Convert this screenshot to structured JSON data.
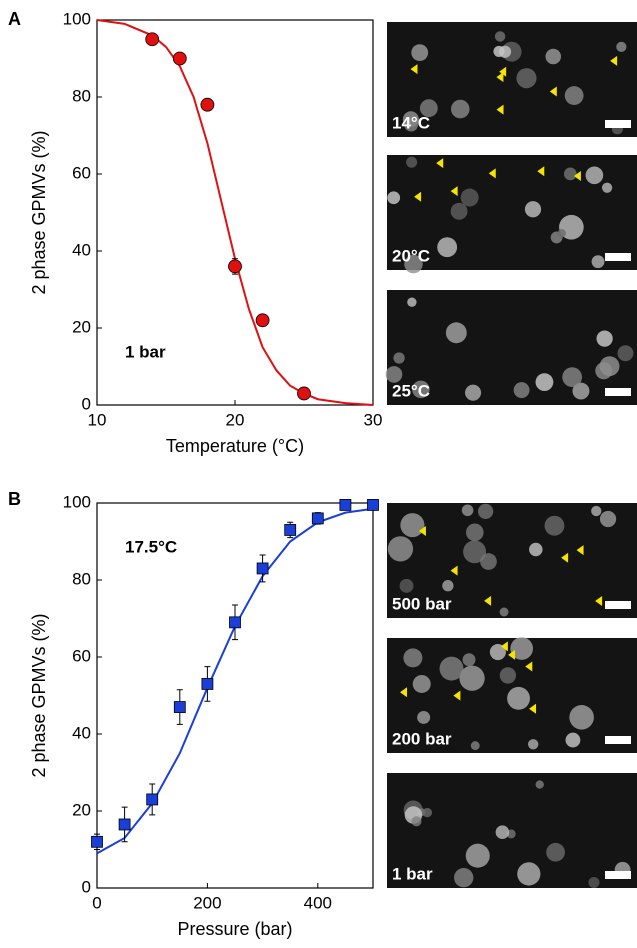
{
  "chart_data": [
    {
      "type": "scatter",
      "panel_label": "A",
      "xlabel": "Temperature (°C)",
      "ylabel": "2 phase GPMVs (%)",
      "annotation": "1 bar",
      "xlim": [
        10,
        30
      ],
      "ylim": [
        0,
        100
      ],
      "xticks": [
        10,
        20,
        30
      ],
      "yticks": [
        0,
        20,
        40,
        60,
        80,
        100
      ],
      "marker": "circle",
      "points": {
        "color": "#e01010",
        "x": [
          14,
          16,
          18,
          20,
          22,
          25
        ],
        "values": [
          95,
          90,
          78,
          36,
          22,
          3
        ],
        "errors": [
          1,
          1,
          1,
          2,
          1.5,
          0.5
        ]
      },
      "fit": {
        "color": "#e01010",
        "x": [
          10,
          12,
          14,
          15,
          16,
          17,
          18,
          19,
          20,
          21,
          22,
          23,
          24,
          25,
          26,
          28,
          30
        ],
        "values": [
          100,
          99,
          96,
          93,
          88,
          80,
          68,
          53,
          38,
          25,
          15,
          9,
          5,
          3,
          1.5,
          0.5,
          0
        ]
      },
      "images": [
        {
          "label": "14°C"
        },
        {
          "label": "20°C"
        },
        {
          "label": "25°C"
        }
      ]
    },
    {
      "type": "scatter",
      "panel_label": "B",
      "xlabel": "Pressure (bar)",
      "ylabel": "2 phase GPMVs (%)",
      "annotation": "17.5°C",
      "xlim": [
        0,
        500
      ],
      "ylim": [
        0,
        100
      ],
      "xticks": [
        0,
        200,
        400
      ],
      "yticks": [
        0,
        20,
        40,
        60,
        80,
        100
      ],
      "marker": "square",
      "points": {
        "color": "#1a3fd8",
        "x": [
          0,
          50,
          100,
          150,
          200,
          250,
          300,
          350,
          400,
          450,
          500
        ],
        "values": [
          12,
          16.5,
          23,
          47,
          53,
          69,
          83,
          93,
          96,
          99.5,
          99.5
        ],
        "errors": [
          2,
          4.5,
          4,
          4.5,
          4.5,
          4.5,
          3.5,
          2,
          1.5,
          0.5,
          0.5
        ]
      },
      "fit": {
        "color": "#1a3fd8",
        "x": [
          0,
          50,
          100,
          150,
          200,
          250,
          300,
          350,
          400,
          450,
          500
        ],
        "values": [
          9,
          13,
          22,
          35,
          52,
          68,
          81,
          90,
          95,
          97.5,
          98.5
        ]
      },
      "images": [
        {
          "label": "500 bar"
        },
        {
          "label": "200 bar"
        },
        {
          "label": "1 bar"
        }
      ]
    }
  ]
}
